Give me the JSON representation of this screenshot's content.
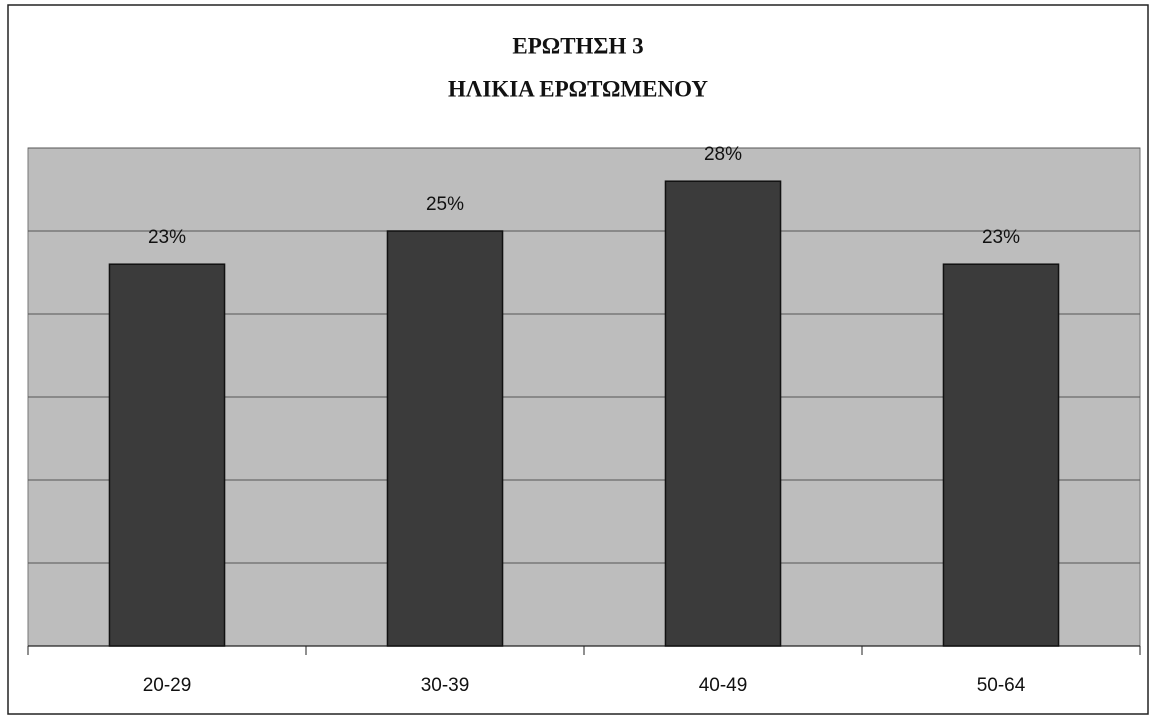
{
  "chart_data": {
    "type": "bar",
    "title": "ΕΡΩΤΗΣΗ 3",
    "subtitle": "ΗΛΙΚΙΑ ΕΡΩΤΩΜΕΝΟΥ",
    "categories": [
      "20-29",
      "30-39",
      "40-49",
      "50-64"
    ],
    "values": [
      23,
      25,
      28,
      23
    ],
    "value_labels": [
      "23%",
      "25%",
      "28%",
      "23%"
    ],
    "color": "#3b3b3b",
    "ylim": [
      0,
      30
    ],
    "yticks": [
      0,
      5,
      10,
      15,
      20,
      25,
      30
    ],
    "grid": true
  }
}
